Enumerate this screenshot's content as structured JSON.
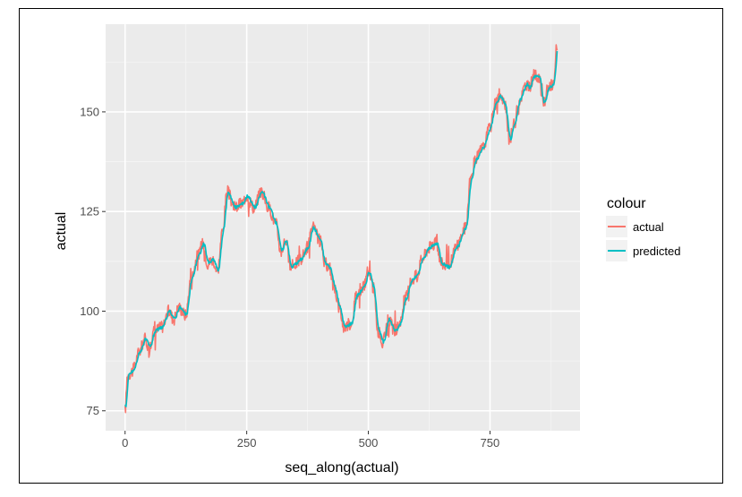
{
  "chart_data": {
    "type": "line",
    "title": "",
    "xlabel": "seq_along(actual)",
    "ylabel": "actual",
    "xlim": [
      -40,
      935
    ],
    "ylim": [
      70,
      172
    ],
    "x_ticks": [
      0,
      250,
      500,
      750
    ],
    "y_ticks": [
      75,
      100,
      125,
      150
    ],
    "grid": true,
    "legend": {
      "title": "colour",
      "position": "right",
      "entries": [
        "actual",
        "predicted"
      ]
    },
    "anchor_points": [
      [
        0,
        75
      ],
      [
        5,
        84
      ],
      [
        15,
        85
      ],
      [
        30,
        90
      ],
      [
        40,
        93
      ],
      [
        50,
        91
      ],
      [
        60,
        95
      ],
      [
        75,
        96
      ],
      [
        90,
        100
      ],
      [
        100,
        98
      ],
      [
        110,
        101
      ],
      [
        125,
        99
      ],
      [
        135,
        108
      ],
      [
        150,
        114
      ],
      [
        160,
        117
      ],
      [
        170,
        112
      ],
      [
        180,
        113
      ],
      [
        190,
        110
      ],
      [
        200,
        120
      ],
      [
        210,
        130
      ],
      [
        225,
        126
      ],
      [
        240,
        127
      ],
      [
        250,
        129
      ],
      [
        265,
        126
      ],
      [
        280,
        130
      ],
      [
        295,
        126
      ],
      [
        310,
        122
      ],
      [
        320,
        115
      ],
      [
        330,
        118
      ],
      [
        340,
        111
      ],
      [
        350,
        112
      ],
      [
        360,
        113
      ],
      [
        375,
        116
      ],
      [
        385,
        121
      ],
      [
        400,
        118
      ],
      [
        410,
        112
      ],
      [
        420,
        111
      ],
      [
        430,
        106
      ],
      [
        440,
        101
      ],
      [
        450,
        96
      ],
      [
        465,
        97
      ],
      [
        475,
        104
      ],
      [
        490,
        106
      ],
      [
        500,
        110
      ],
      [
        510,
        106
      ],
      [
        520,
        95
      ],
      [
        530,
        92
      ],
      [
        540,
        98
      ],
      [
        555,
        95
      ],
      [
        565,
        97
      ],
      [
        575,
        103
      ],
      [
        590,
        108
      ],
      [
        600,
        109
      ],
      [
        610,
        113
      ],
      [
        625,
        116
      ],
      [
        640,
        117
      ],
      [
        650,
        112
      ],
      [
        665,
        111
      ],
      [
        680,
        116
      ],
      [
        700,
        121
      ],
      [
        710,
        133
      ],
      [
        720,
        138
      ],
      [
        735,
        141
      ],
      [
        750,
        146
      ],
      [
        760,
        152
      ],
      [
        770,
        154
      ],
      [
        780,
        152
      ],
      [
        790,
        143
      ],
      [
        800,
        147
      ],
      [
        810,
        153
      ],
      [
        825,
        157
      ],
      [
        830,
        156
      ],
      [
        840,
        159
      ],
      [
        850,
        159
      ],
      [
        860,
        152
      ],
      [
        870,
        156
      ],
      [
        880,
        157
      ],
      [
        888,
        167
      ]
    ],
    "series": [
      {
        "name": "actual",
        "color": "#F8766D"
      },
      {
        "name": "predicted",
        "color": "#00BFC4"
      }
    ]
  }
}
